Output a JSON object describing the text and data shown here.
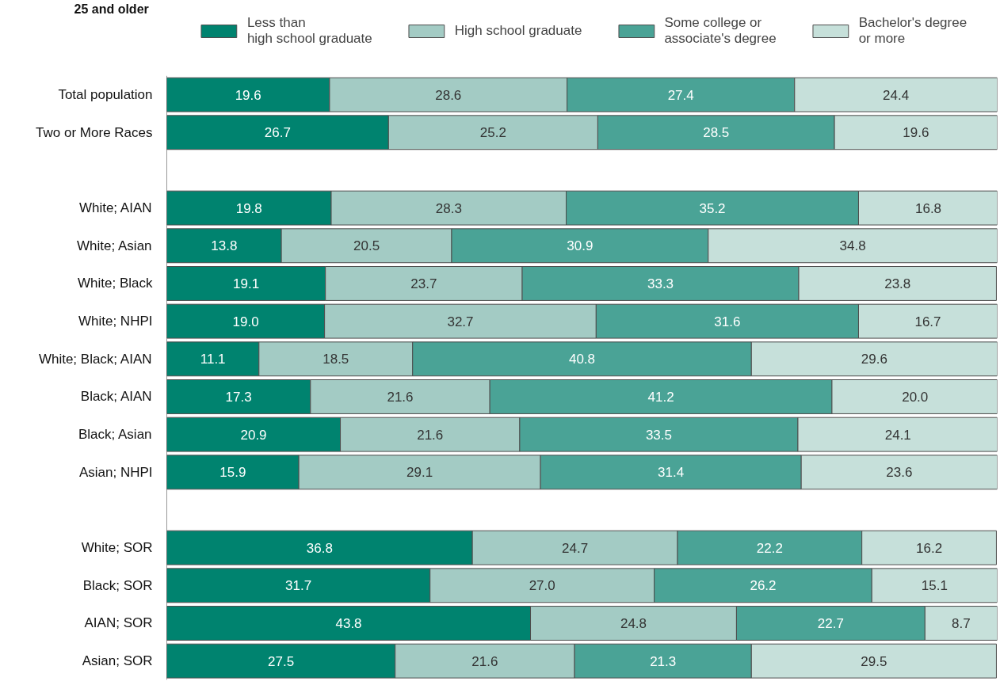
{
  "chart_data": {
    "type": "bar",
    "orientation": "horizontal",
    "stacked": true,
    "legend": "top",
    "tick_labels": "y",
    "grid": false,
    "xlim": [
      0,
      100
    ],
    "annotations": [
      "25 and older"
    ],
    "categories": [
      "Total population",
      "Two or More Races",
      null,
      "White; AIAN",
      "White; Asian",
      "White; Black",
      "White; NHPI",
      "White; Black; AIAN",
      "Black; AIAN",
      "Black; Asian",
      "Asian; NHPI",
      null,
      "White; SOR",
      "Black; SOR",
      "AIAN; SOR",
      "Asian; SOR"
    ],
    "series": [
      {
        "name": "Less than\nhigh school graduate",
        "color": "#00836f",
        "values": [
          19.6,
          26.7,
          null,
          19.8,
          13.8,
          19.1,
          19.0,
          11.1,
          17.3,
          20.9,
          15.9,
          null,
          36.8,
          31.7,
          43.8,
          27.5
        ],
        "value_labels": [
          "19.6",
          "26.7",
          null,
          "19.8",
          "13.8",
          "19.1",
          "19.0",
          "11.1",
          "17.3",
          "20.9",
          "15.9",
          null,
          "36.8",
          "31.7",
          "43.8",
          "27.5"
        ]
      },
      {
        "name": "High school graduate",
        "color": "#a3cbc4",
        "values": [
          28.6,
          25.2,
          null,
          28.3,
          20.5,
          23.7,
          32.7,
          18.5,
          21.6,
          21.6,
          29.1,
          null,
          24.7,
          27.0,
          24.8,
          21.6
        ],
        "value_labels": [
          "28.6",
          "25.2",
          null,
          "28.3",
          "20.5",
          "23.7",
          "32.7",
          "18.5",
          "21.6",
          "21.6",
          "29.1",
          null,
          "24.7",
          "27.0",
          "24.8",
          "21.6"
        ]
      },
      {
        "name": "Some college or\nassociate's degree",
        "color": "#4aa396",
        "values": [
          27.4,
          28.5,
          null,
          35.2,
          30.9,
          33.3,
          31.6,
          40.8,
          41.2,
          33.5,
          31.4,
          null,
          22.2,
          26.2,
          22.7,
          21.3
        ],
        "value_labels": [
          "27.4",
          "28.5",
          null,
          "35.2",
          "30.9",
          "33.3",
          "31.6",
          "40.8",
          "41.2",
          "33.5",
          "31.4",
          null,
          "22.2",
          "26.2",
          "22.7",
          "21.3"
        ]
      },
      {
        "name": "Bachelor's degree\nor more",
        "color": "#c6e0da",
        "values": [
          24.4,
          19.6,
          null,
          16.8,
          34.8,
          23.8,
          16.7,
          29.6,
          20.0,
          24.1,
          23.6,
          null,
          16.2,
          15.1,
          8.7,
          29.5
        ],
        "value_labels": [
          "24.4",
          "19.6",
          null,
          "16.8",
          "34.8",
          "23.8",
          "16.7",
          "29.6",
          "20.0",
          "24.1",
          "23.6",
          null,
          "16.2",
          "15.1",
          "8.7",
          "29.5"
        ]
      }
    ]
  }
}
